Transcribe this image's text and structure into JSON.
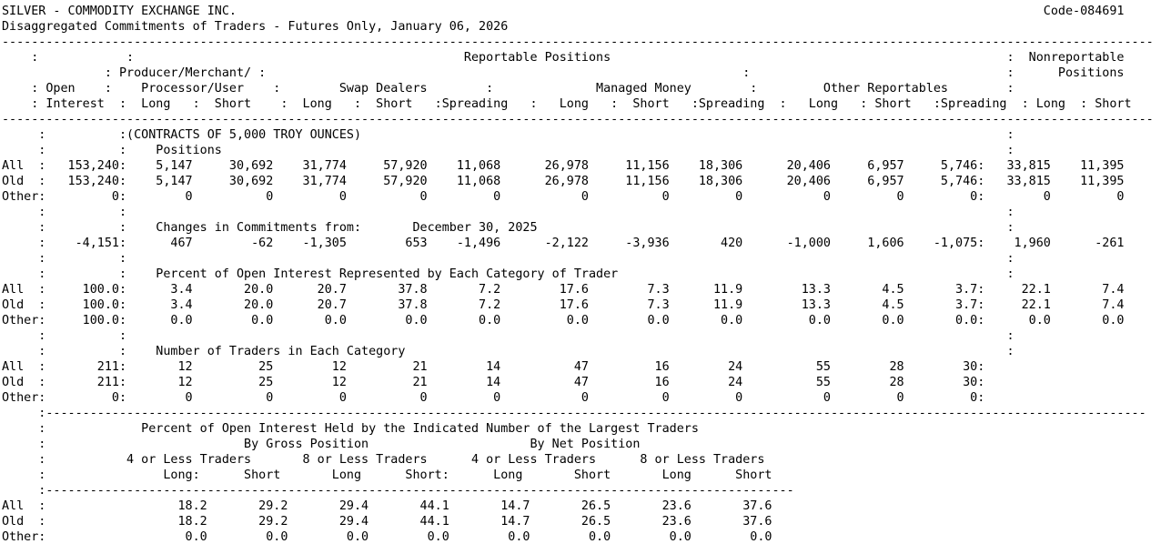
{
  "colors": {
    "text": "#000000",
    "background": "#ffffff"
  },
  "report": {
    "title": "SILVER - COMMODITY EXCHANGE INC.",
    "code": "Code-084691",
    "subtitle": "Disaggregated Commitments of Traders - Futures Only, January 06, 2026"
  },
  "labels": {
    "reportable": "Reportable Positions",
    "nonreportable_line1": "Nonreportable",
    "nonreportable_line2": "Positions",
    "producer_merchant": "Producer/Merchant/",
    "processor_user": "Processor/User",
    "open": "Open",
    "interest": "Interest",
    "swap_dealers": "Swap Dealers",
    "managed_money": "Managed Money",
    "other_reportables": "Other Reportables",
    "long": "Long",
    "short": "Short",
    "spreading": "Spreading",
    "contracts_note": "(CONTRACTS OF 5,000 TROY OUNCES)",
    "positions": "Positions",
    "changes": "Changes in Commitments from:",
    "percent_title": "Percent of Open Interest Represented by Each Category of Trader",
    "traders_title": "Number of Traders in Each Category",
    "concentration_title": "Percent of Open Interest Held by the Indicated Number of the Largest Traders",
    "by_gross": "By Gross Position",
    "by_net": "By Net Position",
    "four_or_less": "4 or Less Traders",
    "eight_or_less": "8 or Less Traders"
  },
  "sections": {
    "positions": {
      "rows": [
        {
          "label": "All",
          "oi": "153,240",
          "values": [
            "5,147",
            "30,692",
            "31,774",
            "57,920",
            "11,068",
            "26,978",
            "11,156",
            "18,306",
            "20,406",
            "6,957",
            "5,746"
          ],
          "nonreportable": [
            "33,815",
            "11,395"
          ]
        },
        {
          "label": "Old",
          "oi": "153,240",
          "values": [
            "5,147",
            "30,692",
            "31,774",
            "57,920",
            "11,068",
            "26,978",
            "11,156",
            "18,306",
            "20,406",
            "6,957",
            "5,746"
          ],
          "nonreportable": [
            "33,815",
            "11,395"
          ]
        },
        {
          "label": "Other",
          "oi": "0",
          "values": [
            "0",
            "0",
            "0",
            "0",
            "0",
            "0",
            "0",
            "0",
            "0",
            "0",
            "0"
          ],
          "nonreportable": [
            "0",
            "0"
          ]
        }
      ]
    },
    "changes": {
      "date": "December 30, 2025",
      "row": {
        "label": "",
        "oi": "-4,151",
        "values": [
          "467",
          "-62",
          "-1,305",
          "653",
          "-1,496",
          "-2,122",
          "-3,936",
          "420",
          "-1,000",
          "1,606",
          "-1,075"
        ],
        "nonreportable": [
          "1,960",
          "-261"
        ]
      }
    },
    "percent": {
      "rows": [
        {
          "label": "All",
          "oi": "100.0",
          "values": [
            "3.4",
            "20.0",
            "20.7",
            "37.8",
            "7.2",
            "17.6",
            "7.3",
            "11.9",
            "13.3",
            "4.5",
            "3.7"
          ],
          "nonreportable": [
            "22.1",
            "7.4"
          ]
        },
        {
          "label": "Old",
          "oi": "100.0",
          "values": [
            "3.4",
            "20.0",
            "20.7",
            "37.8",
            "7.2",
            "17.6",
            "7.3",
            "11.9",
            "13.3",
            "4.5",
            "3.7"
          ],
          "nonreportable": [
            "22.1",
            "7.4"
          ]
        },
        {
          "label": "Other",
          "oi": "100.0",
          "values": [
            "0.0",
            "0.0",
            "0.0",
            "0.0",
            "0.0",
            "0.0",
            "0.0",
            "0.0",
            "0.0",
            "0.0",
            "0.0"
          ],
          "nonreportable": [
            "0.0",
            "0.0"
          ]
        }
      ]
    },
    "trader_counts": {
      "rows": [
        {
          "label": "All",
          "oi": "211",
          "values": [
            "12",
            "25",
            "12",
            "21",
            "14",
            "47",
            "16",
            "24",
            "55",
            "28",
            "30"
          ],
          "nonreportable": []
        },
        {
          "label": "Old",
          "oi": "211",
          "values": [
            "12",
            "25",
            "12",
            "21",
            "14",
            "47",
            "16",
            "24",
            "55",
            "28",
            "30"
          ],
          "nonreportable": []
        },
        {
          "label": "Other",
          "oi": "0",
          "values": [
            "0",
            "0",
            "0",
            "0",
            "0",
            "0",
            "0",
            "0",
            "0",
            "0",
            "0"
          ],
          "nonreportable": []
        }
      ]
    },
    "concentration": {
      "rows": [
        {
          "label": "All",
          "values": [
            "18.2",
            "29.2",
            "29.4",
            "44.1",
            "14.7",
            "26.5",
            "23.6",
            "37.6"
          ]
        },
        {
          "label": "Old",
          "values": [
            "18.2",
            "29.2",
            "29.4",
            "44.1",
            "14.7",
            "26.5",
            "23.6",
            "37.6"
          ]
        },
        {
          "label": "Other",
          "values": [
            "0.0",
            "0.0",
            "0.0",
            "0.0",
            "0.0",
            "0.0",
            "0.0",
            "0.0"
          ]
        }
      ]
    }
  }
}
